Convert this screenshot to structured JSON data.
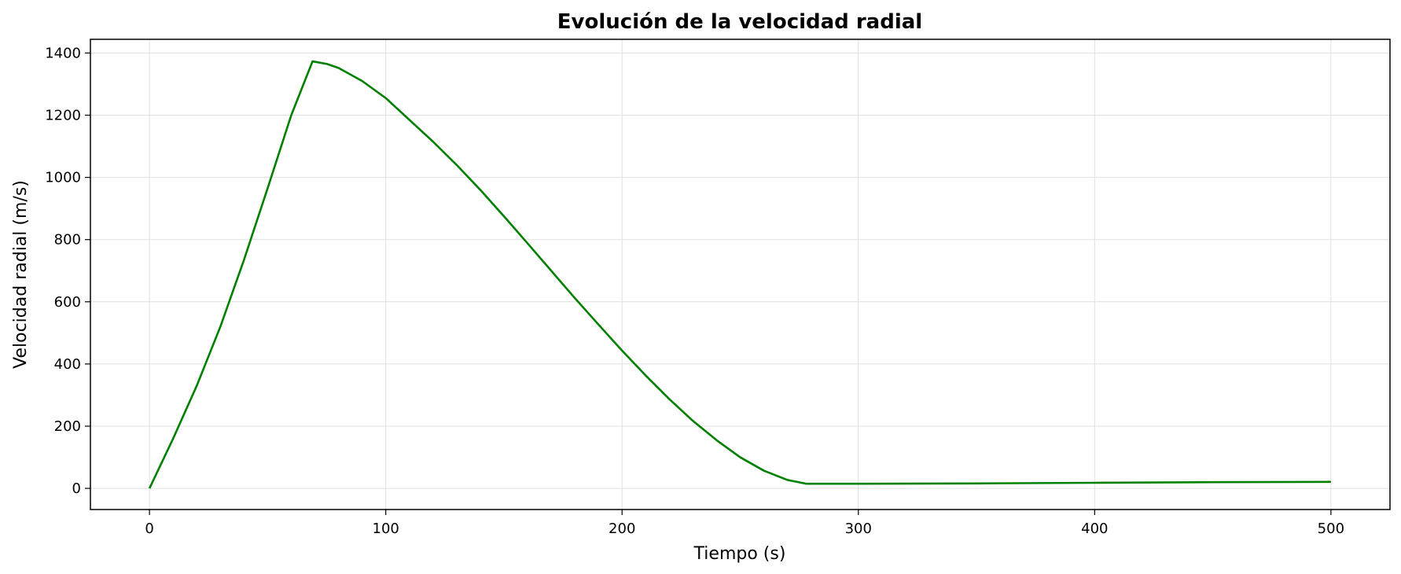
{
  "chart_data": {
    "type": "line",
    "title": "Evolución de la velocidad radial",
    "xlabel": "Tiempo (s)",
    "ylabel": "Velocidad radial (m/s)",
    "xlim": [
      -25,
      525
    ],
    "ylim": [
      -68,
      1444
    ],
    "xticks": [
      0,
      100,
      200,
      300,
      400,
      500
    ],
    "yticks": [
      0,
      200,
      400,
      600,
      800,
      1000,
      1200,
      1400
    ],
    "grid": true,
    "series": [
      {
        "color": "#008000",
        "x": [
          0,
          10,
          20,
          30,
          40,
          50,
          60,
          69,
          75,
          80,
          90,
          100,
          110,
          120,
          130,
          140,
          150,
          160,
          170,
          180,
          190,
          200,
          210,
          220,
          230,
          240,
          250,
          260,
          270,
          278,
          300,
          350,
          400,
          450,
          500
        ],
        "y": [
          0,
          160,
          330,
          520,
          735,
          965,
          1200,
          1373,
          1365,
          1352,
          1310,
          1255,
          1185,
          1115,
          1040,
          960,
          875,
          788,
          700,
          612,
          527,
          443,
          363,
          287,
          217,
          155,
          100,
          57,
          27,
          15,
          15,
          16,
          18,
          20,
          21
        ]
      }
    ]
  }
}
